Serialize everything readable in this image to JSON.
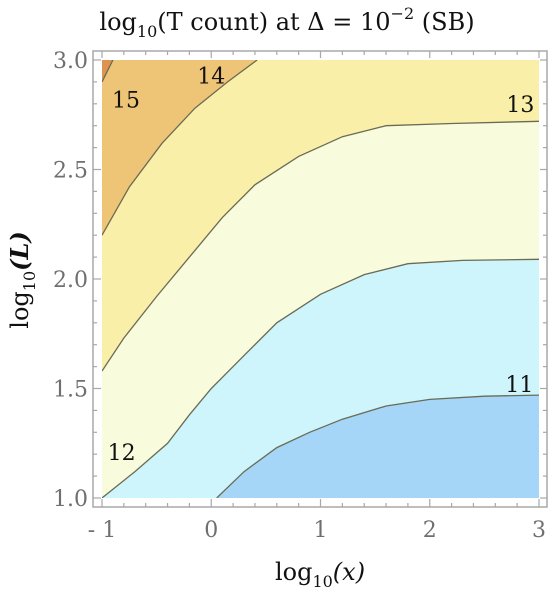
{
  "chart_data": {
    "type": "contour",
    "title": {
      "pre": "log",
      "sub": "10",
      "mid": "(T count) at Δ = 10",
      "sup": "−2",
      "post": "  (SB)"
    },
    "xlabel": {
      "pre": "log",
      "sub": "10",
      "post": "(x)"
    },
    "ylabel": {
      "pre": "log",
      "sub": "10",
      "post": "(L)"
    },
    "xlim": [
      -1,
      3
    ],
    "ylim": [
      1.0,
      3.0
    ],
    "x_ticks": [
      -1,
      0,
      1,
      2,
      3
    ],
    "x_tick_labels": [
      "- 1",
      "0",
      "1",
      "2",
      "3"
    ],
    "y_ticks": [
      1.0,
      1.5,
      2.0,
      2.5,
      3.0
    ],
    "y_tick_labels": [
      "1.0",
      "1.5",
      "2.0",
      "2.5",
      "3.0"
    ],
    "band_colors": [
      "#a5d6f7",
      "#cdf5fb",
      "#f8fbdc",
      "#f9efa9",
      "#eec577",
      "#de9350"
    ],
    "contours": [
      {
        "level": 11,
        "label": "11",
        "points": [
          [
            0.05,
            1.0
          ],
          [
            0.3,
            1.12
          ],
          [
            0.6,
            1.23
          ],
          [
            0.9,
            1.3
          ],
          [
            1.2,
            1.36
          ],
          [
            1.6,
            1.42
          ],
          [
            2.0,
            1.45
          ],
          [
            2.5,
            1.465
          ],
          [
            3.0,
            1.47
          ]
        ],
        "label_at": [
          2.82,
          1.52
        ]
      },
      {
        "level": 12,
        "label": "12",
        "points": [
          [
            -1.0,
            1.0
          ],
          [
            -0.7,
            1.12
          ],
          [
            -0.4,
            1.25
          ],
          [
            -0.2,
            1.38
          ],
          [
            0.0,
            1.5
          ],
          [
            0.3,
            1.65
          ],
          [
            0.6,
            1.8
          ],
          [
            1.0,
            1.93
          ],
          [
            1.4,
            2.02
          ],
          [
            1.8,
            2.07
          ],
          [
            2.3,
            2.085
          ],
          [
            3.0,
            2.09
          ]
        ],
        "label_at": [
          -0.82,
          1.21
        ]
      },
      {
        "level": 13,
        "label": "13",
        "points": [
          [
            -1.0,
            1.58
          ],
          [
            -0.8,
            1.73
          ],
          [
            -0.5,
            1.92
          ],
          [
            -0.2,
            2.1
          ],
          [
            0.1,
            2.28
          ],
          [
            0.4,
            2.43
          ],
          [
            0.8,
            2.56
          ],
          [
            1.2,
            2.65
          ],
          [
            1.6,
            2.7
          ],
          [
            2.2,
            2.71
          ],
          [
            3.0,
            2.72
          ]
        ],
        "label_at": [
          2.83,
          2.8
        ]
      },
      {
        "level": 14,
        "label": "14",
        "points": [
          [
            -1.0,
            2.2
          ],
          [
            -0.75,
            2.42
          ],
          [
            -0.45,
            2.62
          ],
          [
            -0.15,
            2.78
          ],
          [
            0.15,
            2.9
          ],
          [
            0.42,
            3.0
          ]
        ],
        "label_at": [
          0.0,
          2.93
        ]
      },
      {
        "level": 15,
        "label": "15",
        "points": [
          [
            -1.0,
            2.9
          ],
          [
            -0.9,
            3.0
          ]
        ],
        "label_at": [
          -0.78,
          2.82
        ]
      }
    ]
  }
}
